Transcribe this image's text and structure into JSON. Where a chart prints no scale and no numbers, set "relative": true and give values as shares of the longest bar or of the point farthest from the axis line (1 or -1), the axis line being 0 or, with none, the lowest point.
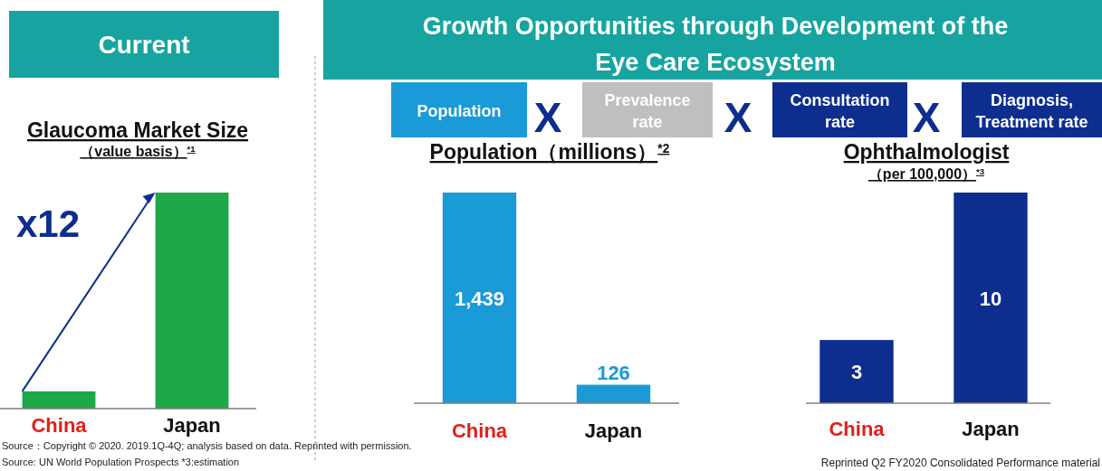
{
  "chart_data": [
    {
      "type": "bar",
      "title": "Glaucoma Market Size",
      "subtitle": "（value basis）$^{*1}$",
      "categories": [
        "China",
        "Japan"
      ],
      "values": [
        0.08,
        1
      ],
      "color": "#1fa84a",
      "relative": true,
      "annotations": [
        "Current",
        "x12",
        "Source：Copyright © 2020. 2019.1Q-4Q; analysis based on data. Reprinted with permission.",
        "Source: UN World Population Prospects  *3:estimation"
      ]
    },
    {
      "type": "bar",
      "title": "Population（millions）$^{*2}$",
      "categories": [
        "China",
        "Japan"
      ],
      "values": [
        1439,
        126
      ],
      "color": "#1a9ad6",
      "value_labels": [
        "1,439",
        "126"
      ],
      "annotations": [
        "Growth Opportunities through Development of the",
        "Eye Care Ecosystem",
        "Population",
        "X",
        "Prevalence rate",
        "X",
        "Consultation rate",
        "X",
        "Diagnosis, Treatment rate"
      ]
    },
    {
      "type": "bar",
      "title": "Ophthalmologist",
      "subtitle": "（per 100,000）$^{*3}$",
      "categories": [
        "China",
        "Japan"
      ],
      "values": [
        3,
        10
      ],
      "color": "#0d2d8f",
      "data_labels": true,
      "annotations": [
        "Reprinted Q2 FY2020 Consolidated Performance material"
      ]
    }
  ]
}
